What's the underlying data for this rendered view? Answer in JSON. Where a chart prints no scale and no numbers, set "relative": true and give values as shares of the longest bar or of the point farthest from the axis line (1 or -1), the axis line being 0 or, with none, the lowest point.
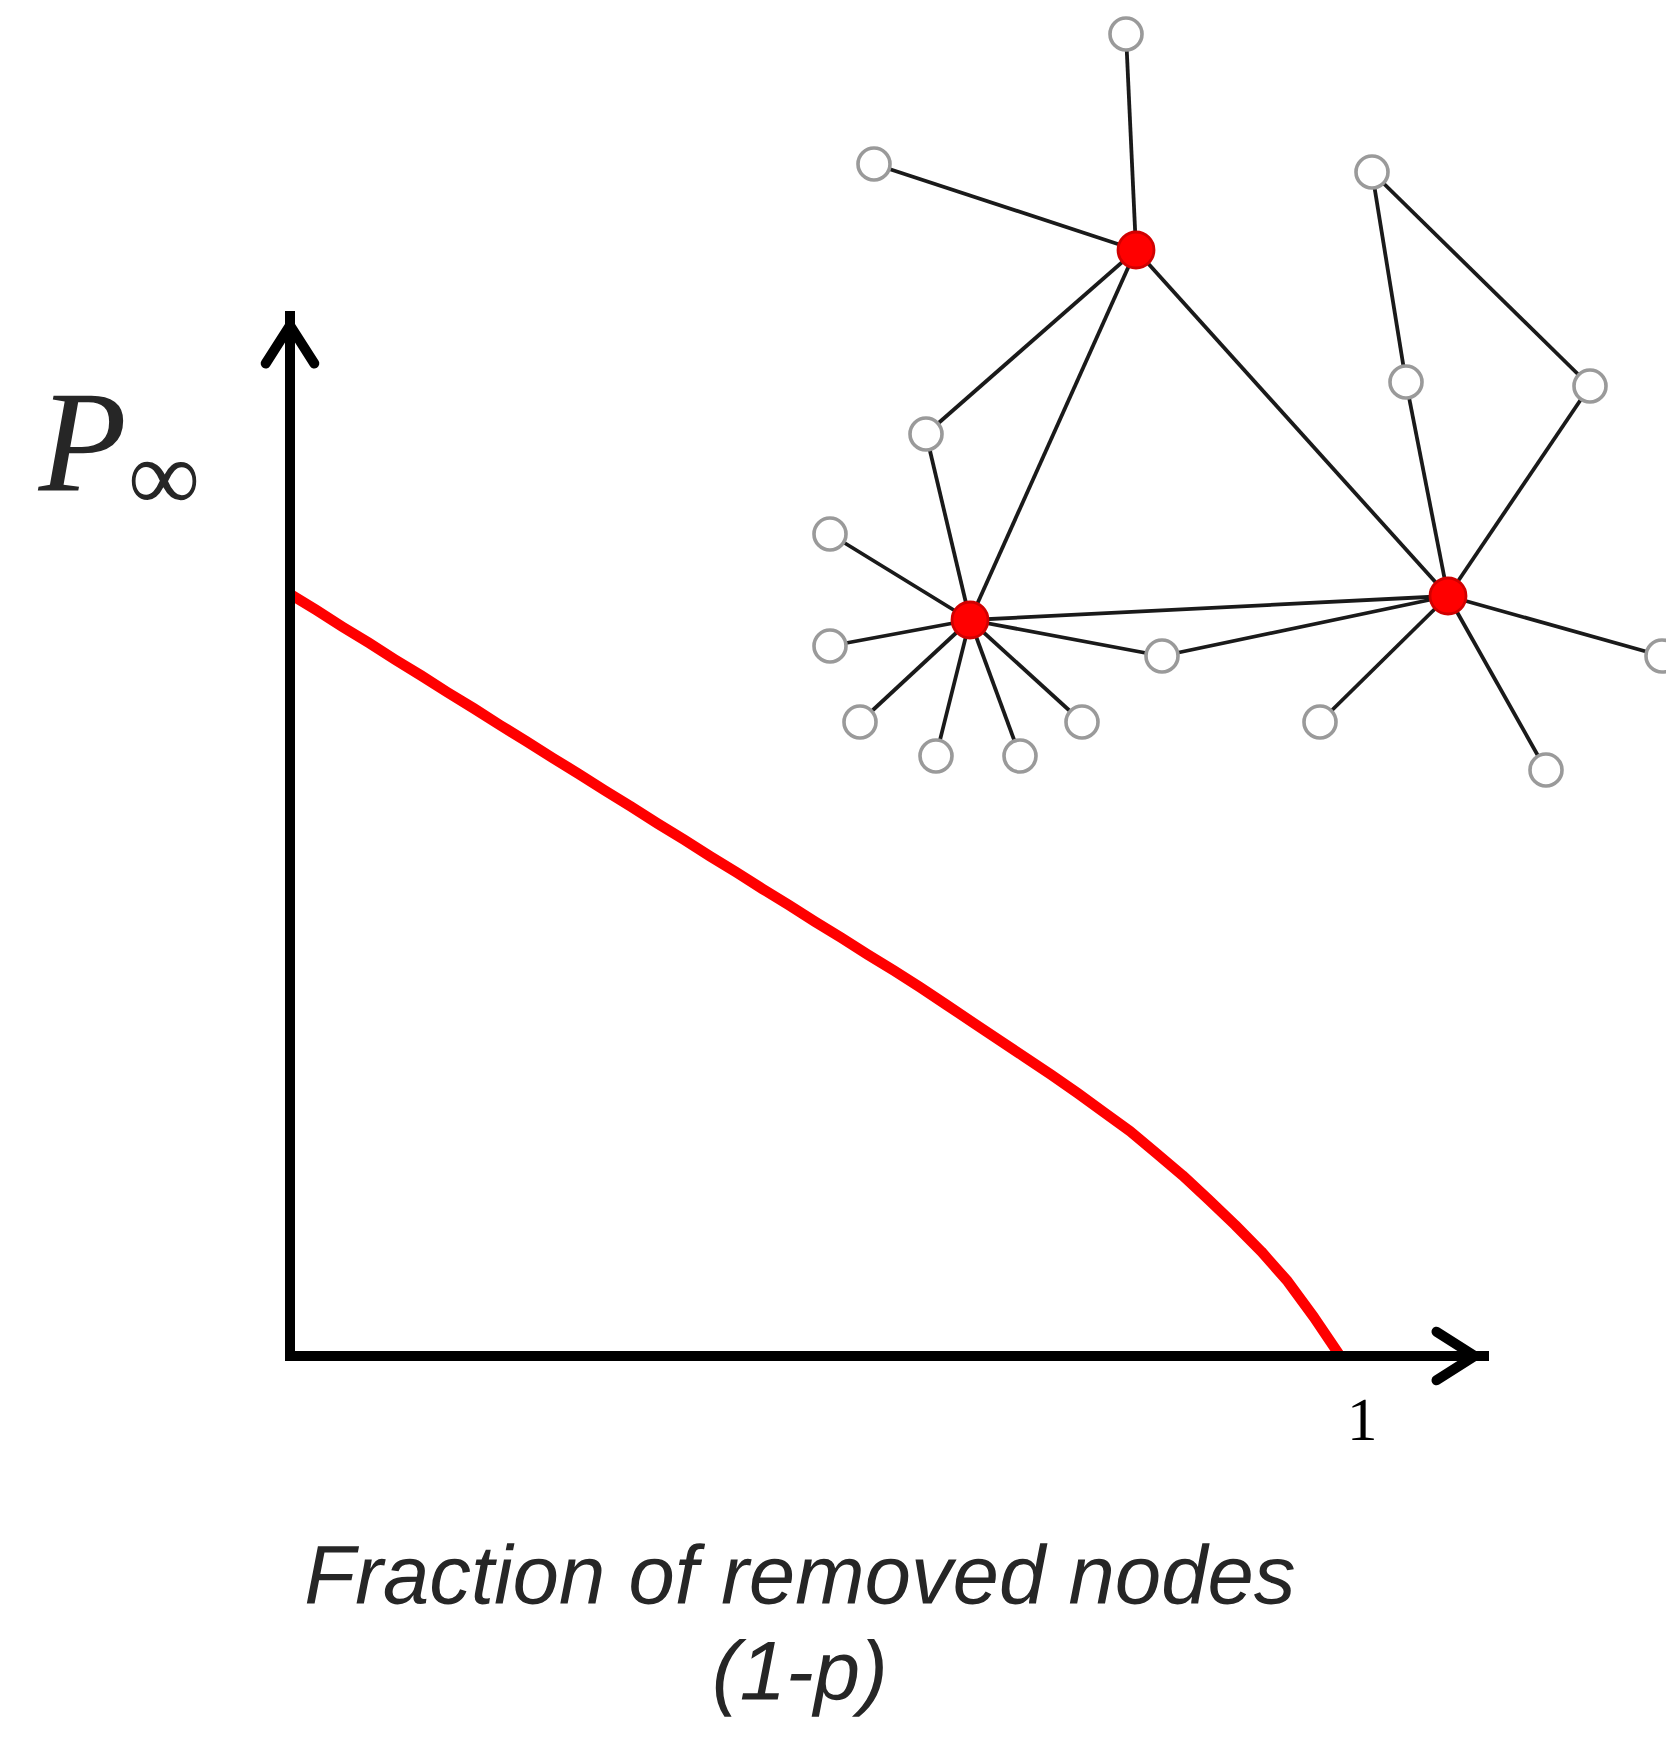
{
  "chart_data": {
    "type": "line",
    "xlabel": "Fraction of removed nodes\n(1-p)",
    "ylabel": "P$_{∞}$",
    "relative": true,
    "categories": [
      null,
      null,
      null,
      null,
      null,
      null,
      null,
      null,
      null,
      null,
      null,
      null,
      null,
      null,
      null,
      null,
      null,
      null,
      null,
      null,
      null,
      null,
      null,
      null,
      null,
      null,
      null,
      null,
      null,
      null,
      null,
      null,
      null,
      null,
      null,
      null,
      null,
      null,
      null,
      null,
      null
    ],
    "series": [
      {
        "color": "#ff0000",
        "values": [
          1,
          0.979,
          0.957,
          0.936,
          0.914,
          0.893,
          0.871,
          0.85,
          0.828,
          0.807,
          0.785,
          0.764,
          0.742,
          0.721,
          0.699,
          0.678,
          0.656,
          0.635,
          0.613,
          0.592,
          0.57,
          0.549,
          0.527,
          0.506,
          0.484,
          0.461,
          0.438,
          0.415,
          0.392,
          0.369,
          0.345,
          0.32,
          0.295,
          0.266,
          0.237,
          0.205,
          0.172,
          0.137,
          0.098,
          0.051,
          0
        ]
      }
    ],
    "annotations": [
      "1"
    ]
  }
}
